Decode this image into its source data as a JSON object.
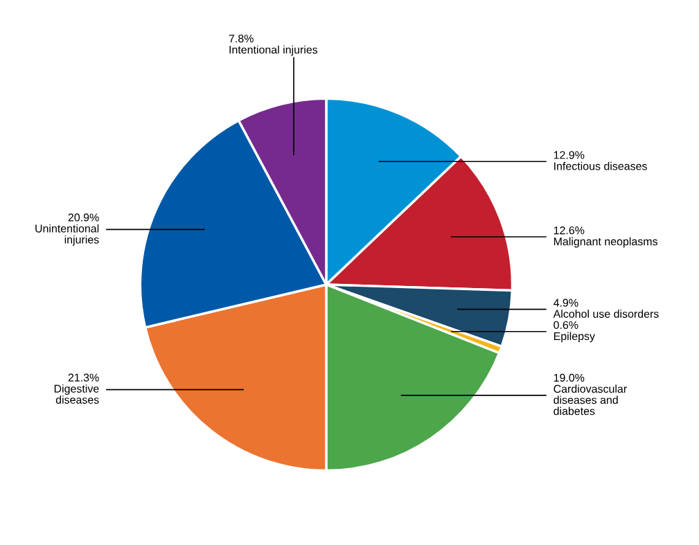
{
  "chart_data": {
    "type": "pie",
    "categories": [
      "Infectious diseases",
      "Malignant neoplasms",
      "Alcohol use disorders",
      "Epilepsy",
      "Cardiovascular\ndiseases and\ndiabetes",
      "Digestive\ndiseases",
      "Unintentional\ninjuries",
      "Intentional injuries"
    ],
    "values": [
      12.9,
      12.6,
      4.9,
      0.6,
      19.0,
      21.3,
      20.9,
      7.8
    ],
    "value_labels": [
      "12.9%",
      "12.6%",
      "4.9%",
      "0.6%",
      "19.0%",
      "21.3%",
      "20.9%",
      "7.8%"
    ],
    "colors": [
      "#0092d5",
      "#c41f2e",
      "#1b4a6b",
      "#f5b41a",
      "#4ca64a",
      "#ec7431",
      "#0059a8",
      "#762a8e"
    ],
    "legend": false
  }
}
